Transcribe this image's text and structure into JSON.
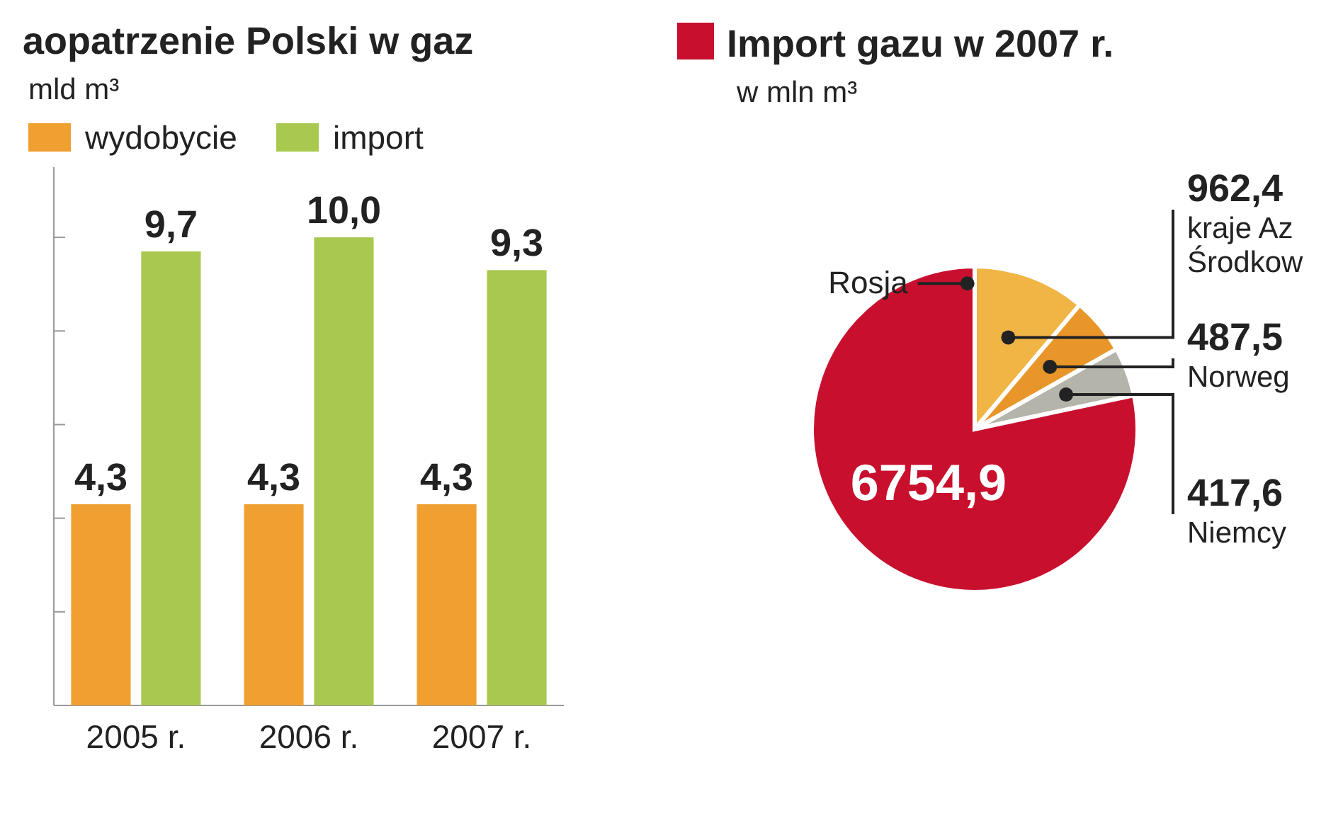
{
  "chart_data": [
    {
      "type": "bar",
      "title": "aopatrzenie Polski w gaz",
      "subtitle": "mld m³",
      "categories": [
        "2005 r.",
        "2006 r.",
        "2007 r."
      ],
      "series": [
        {
          "name": "wydobycie",
          "color": "#f0a030",
          "values": [
            4.3,
            4.3,
            4.3
          ],
          "value_labels": [
            "4,3",
            "4,3",
            "4,3"
          ]
        },
        {
          "name": "import",
          "color": "#a8c850",
          "values": [
            9.7,
            10.0,
            9.3
          ],
          "value_labels": [
            "9,7",
            "10,0",
            "9,3"
          ]
        }
      ],
      "ylim": [
        0,
        11.5
      ],
      "yticks": [
        {
          "value": 0,
          "label": null
        },
        {
          "value": 2,
          "label": null
        },
        {
          "value": 4,
          "label": null
        },
        {
          "value": 6,
          "label": null
        },
        {
          "value": 8,
          "label": null
        },
        {
          "value": 10,
          "label": null
        }
      ],
      "tick_labels": "x",
      "legend": "top left",
      "grid": false
    },
    {
      "type": "pie",
      "title": "Import gazu w 2007 r.",
      "subtitle": "w mln m³",
      "categories": [
        "kraje Az Środkow",
        "Norweg",
        "Niemcy",
        "Rosja"
      ],
      "values": [
        962.4,
        487.5,
        417.6,
        6754.9
      ],
      "value_labels": [
        "962,4",
        "487,5",
        "417,6",
        "6754,9"
      ],
      "colors": [
        "#f0b545",
        "#e8962a",
        "#b4b4aa",
        "#c8102e"
      ]
    }
  ]
}
